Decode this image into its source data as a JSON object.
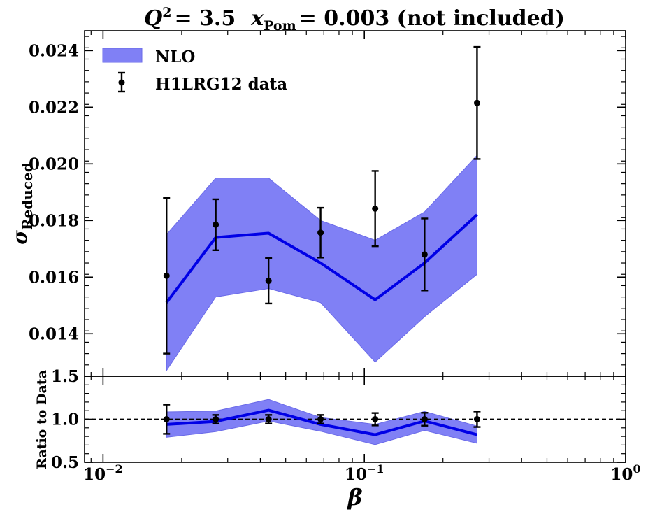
{
  "chart_data": [
    {
      "panel": "main",
      "type": "line",
      "title_parts": {
        "q_sym": "Q",
        "q_exp": "2",
        "q_val": "= 3.5",
        "x_sym": "x",
        "x_sub": "Pom",
        "x_val": "= 0.003 (not included)"
      },
      "xlabel": "β",
      "ylabel_parts": {
        "sym": "σ",
        "sub": "Reduced"
      },
      "x_scale": "log",
      "xlim": [
        0.0085,
        1.0
      ],
      "ylim": [
        0.0125,
        0.0247
      ],
      "x_ticks": [
        {
          "value": 0.01,
          "base": "10",
          "exp": "−2"
        },
        {
          "value": 0.1,
          "base": "10",
          "exp": "−1"
        },
        {
          "value": 1.0,
          "base": "10",
          "exp": "0"
        }
      ],
      "y_ticks": [
        0.014,
        0.016,
        0.018,
        0.02,
        0.022,
        0.024
      ],
      "y_tick_labels": [
        "0.014",
        "0.016",
        "0.018",
        "0.020",
        "0.022",
        "0.024"
      ],
      "legend": {
        "position": "top-left",
        "entries": [
          "NLO",
          "H1LRG12 data"
        ]
      },
      "series": [
        {
          "name": "NLO",
          "kind": "line_with_band",
          "color": "#0000e6",
          "band_color": "#8080f5",
          "x": [
            0.0175,
            0.027,
            0.043,
            0.068,
            0.11,
            0.17,
            0.27
          ],
          "y": [
            0.0151,
            0.0174,
            0.01755,
            0.0165,
            0.0152,
            0.0165,
            0.0182
          ],
          "y_lower": [
            0.0127,
            0.0153,
            0.0156,
            0.0151,
            0.013,
            0.0146,
            0.0161
          ],
          "y_upper": [
            0.0175,
            0.0195,
            0.0195,
            0.018,
            0.0173,
            0.0183,
            0.0203
          ]
        },
        {
          "name": "H1LRG12 data",
          "kind": "errorbar",
          "color": "#000000",
          "x": [
            0.0175,
            0.027,
            0.043,
            0.068,
            0.11,
            0.17,
            0.27
          ],
          "y": [
            0.01605,
            0.01785,
            0.01587,
            0.01757,
            0.01842,
            0.0168,
            0.02215
          ],
          "y_err": [
            0.00275,
            0.0009,
            0.0008,
            0.00088,
            0.00133,
            0.00127,
            0.00198
          ]
        }
      ]
    },
    {
      "panel": "ratio",
      "type": "line",
      "ylabel": "Ratio to Data",
      "x_scale": "log",
      "xlim": [
        0.0085,
        1.0
      ],
      "ylim": [
        0.5,
        1.5
      ],
      "y_ticks": [
        0.5,
        1.0,
        1.5
      ],
      "y_tick_labels": [
        "0.5",
        "1.0",
        "1.5"
      ],
      "reference_line": 1.0,
      "series": [
        {
          "name": "NLO",
          "kind": "line_with_band",
          "color": "#0000e6",
          "band_color": "#8080f5",
          "x": [
            0.0175,
            0.027,
            0.043,
            0.068,
            0.11,
            0.17,
            0.27
          ],
          "y": [
            0.94,
            0.975,
            1.105,
            0.94,
            0.82,
            0.98,
            0.82
          ],
          "y_lower": [
            0.79,
            0.855,
            0.98,
            0.86,
            0.705,
            0.87,
            0.72
          ],
          "y_upper": [
            1.085,
            1.095,
            1.23,
            1.02,
            0.94,
            1.09,
            0.92
          ]
        },
        {
          "name": "H1LRG12 data",
          "kind": "errorbar",
          "color": "#000000",
          "x": [
            0.0175,
            0.027,
            0.043,
            0.068,
            0.11,
            0.17,
            0.27
          ],
          "y": [
            1.0,
            1.0,
            1.0,
            1.0,
            1.0,
            1.0,
            1.0
          ],
          "y_err": [
            0.17,
            0.05,
            0.05,
            0.05,
            0.072,
            0.075,
            0.09
          ]
        }
      ]
    }
  ]
}
